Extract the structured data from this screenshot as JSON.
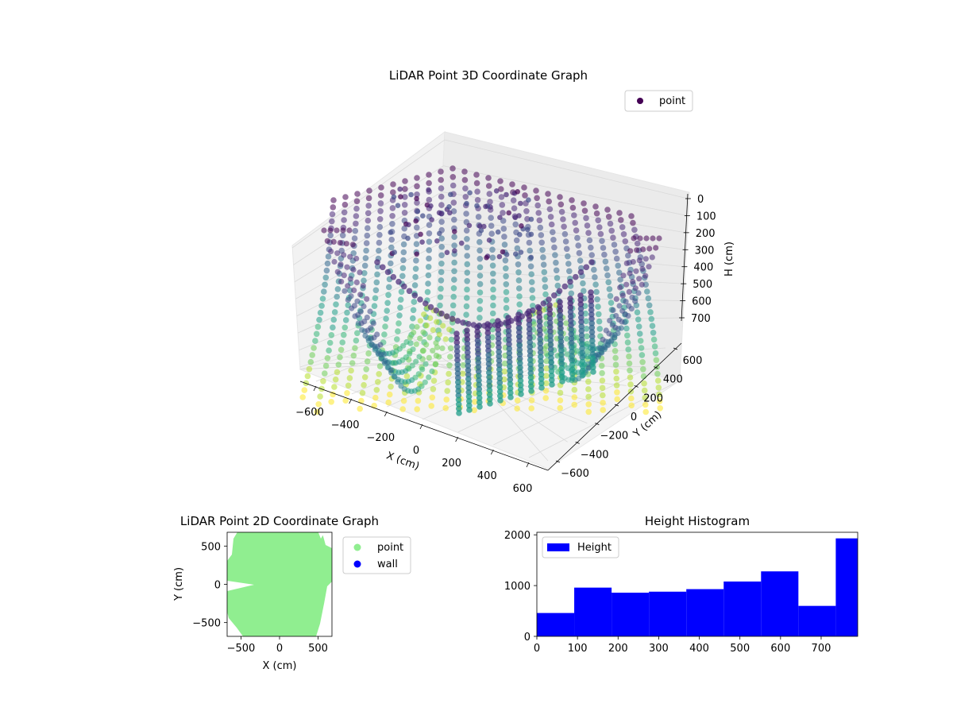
{
  "chart_data": [
    {
      "type": "scatter",
      "projection": "3d",
      "title": "LiDAR Point 3D Coordinate Graph",
      "xlabel": "X (cm)",
      "ylabel": "Y (cm)",
      "zlabel": "H (cm)",
      "xlim": [
        -700,
        700
      ],
      "ylim": [
        -700,
        700
      ],
      "zlim": [
        780,
        0
      ],
      "z_axis_inverted": true,
      "x_ticks": [
        "−600",
        "−400",
        "−200",
        "0",
        "200",
        "400",
        "600"
      ],
      "y_ticks": [
        "−600",
        "−400",
        "−200",
        "0",
        "200",
        "400",
        "600"
      ],
      "z_ticks": [
        "0",
        "100",
        "200",
        "300",
        "400",
        "500",
        "600",
        "700"
      ],
      "colormap": "viridis",
      "legend": {
        "labels": [
          "point"
        ],
        "placement": "top-right"
      },
      "legend_color": "#440154",
      "grid": true,
      "description_series": [
        {
          "name": "point"
        }
      ]
    },
    {
      "type": "scatter",
      "title": "LiDAR Point 2D Coordinate Graph",
      "xlabel": "X (cm)",
      "ylabel": "Y (cm)",
      "xlim": [
        -680,
        680
      ],
      "ylim": [
        -680,
        680
      ],
      "x_ticks": [
        "−500",
        "0",
        "500"
      ],
      "x_tick_values": [
        -500,
        0,
        500
      ],
      "y_ticks": [
        "−500",
        "0",
        "500"
      ],
      "y_tick_values": [
        -500,
        0,
        500
      ],
      "series": [
        {
          "name": "point",
          "color": "#90ee90"
        },
        {
          "name": "wall",
          "color": "#0000ff"
        }
      ],
      "legend": {
        "placement": "outside-right"
      },
      "grid": false
    },
    {
      "type": "bar",
      "title": "Height Histogram",
      "bin_edges": [
        0,
        92,
        184,
        276,
        368,
        460,
        552,
        644,
        736,
        790
      ],
      "values": [
        460,
        960,
        860,
        880,
        930,
        1080,
        1280,
        600,
        1930
      ],
      "xlim": [
        0,
        790
      ],
      "ylim": [
        0,
        2050
      ],
      "x_ticks": [
        "0",
        "100",
        "200",
        "300",
        "400",
        "500",
        "600",
        "700"
      ],
      "x_tick_values": [
        0,
        100,
        200,
        300,
        400,
        500,
        600,
        700
      ],
      "y_ticks": [
        "0",
        "1000",
        "2000"
      ],
      "y_tick_values": [
        0,
        1000,
        2000
      ],
      "series": [
        {
          "name": "Height",
          "color": "#0000ff"
        }
      ],
      "legend": {
        "placement": "top-left"
      },
      "grid": false
    }
  ]
}
